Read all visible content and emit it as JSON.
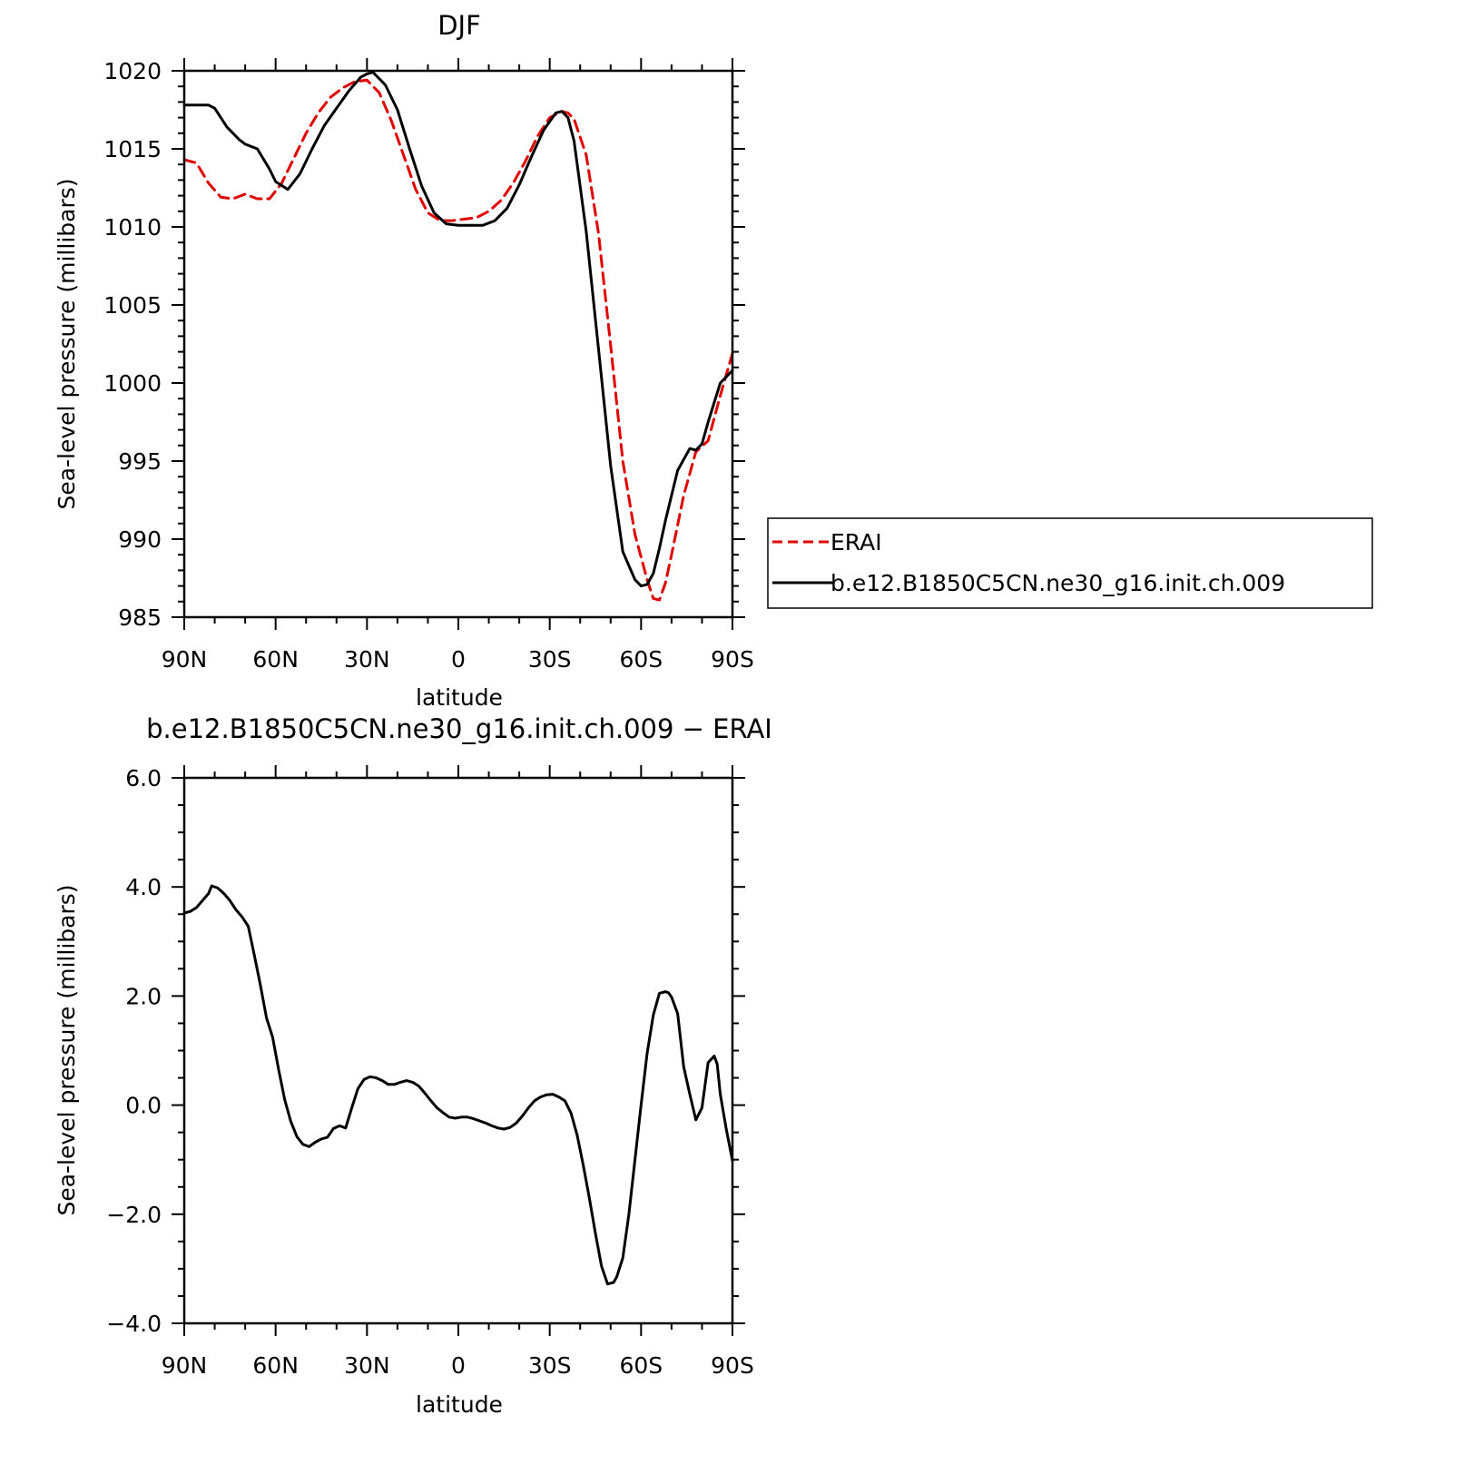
{
  "chart_data": [
    {
      "type": "line",
      "title": "DJF",
      "xlabel": "latitude",
      "ylabel": "Sea-level pressure (millibars)",
      "xlim": [
        90,
        -90
      ],
      "ylim": [
        985,
        1020
      ],
      "x_ticks": [
        90,
        60,
        30,
        0,
        -30,
        -60,
        -90
      ],
      "x_tick_labels": [
        "90N",
        "60N",
        "30N",
        "0",
        "30S",
        "60S",
        "90S"
      ],
      "y_ticks": [
        985,
        990,
        995,
        1000,
        1005,
        1010,
        1015,
        1020
      ],
      "y_tick_labels": [
        "985",
        "990",
        "995",
        "1000",
        "1005",
        "1010",
        "1015",
        "1020"
      ],
      "grid": false,
      "legend_position": "right, outside plot",
      "series": [
        {
          "name": "ERAI",
          "color": "#e00000",
          "dash": "dashed",
          "x": [
            90,
            86,
            82,
            78,
            74,
            70,
            66,
            62,
            58,
            54,
            50,
            46,
            42,
            38,
            34,
            30,
            26,
            22,
            18,
            14,
            10,
            6,
            2,
            -2,
            -6,
            -10,
            -14,
            -18,
            -22,
            -26,
            -30,
            -34,
            -36,
            -38,
            -42,
            -46,
            -50,
            -54,
            -58,
            -62,
            -64,
            -66,
            -68,
            -70,
            -74,
            -78,
            -82,
            -86,
            -90
          ],
          "y": [
            1014.3,
            1014.1,
            1012.8,
            1011.9,
            1011.8,
            1012.1,
            1011.8,
            1011.8,
            1012.8,
            1014.4,
            1016.0,
            1017.3,
            1018.3,
            1018.9,
            1019.3,
            1019.4,
            1018.6,
            1016.8,
            1014.6,
            1012.4,
            1010.9,
            1010.4,
            1010.4,
            1010.5,
            1010.6,
            1011.0,
            1011.7,
            1012.8,
            1014.2,
            1015.8,
            1017.0,
            1017.4,
            1017.3,
            1016.9,
            1014.6,
            1009.6,
            1002.4,
            995.0,
            990.3,
            987.4,
            986.2,
            986.1,
            987.2,
            989.0,
            992.8,
            995.6,
            996.3,
            999.2,
            1001.9
          ]
        },
        {
          "name": "b.e12.B1850C5CN.ne30_g16.init.ch.009",
          "color": "#000000",
          "dash": "solid",
          "x": [
            90,
            86,
            82,
            80,
            76,
            72,
            70,
            66,
            62,
            60,
            56,
            52,
            48,
            44,
            40,
            36,
            32,
            30,
            28,
            24,
            20,
            16,
            12,
            8,
            4,
            0,
            -4,
            -8,
            -12,
            -16,
            -20,
            -24,
            -28,
            -32,
            -34,
            -36,
            -38,
            -42,
            -46,
            -50,
            -54,
            -58,
            -60,
            -62,
            -64,
            -66,
            -68,
            -72,
            -76,
            -78,
            -80,
            -82,
            -86,
            -90
          ],
          "y": [
            1017.8,
            1017.8,
            1017.8,
            1017.6,
            1016.4,
            1015.6,
            1015.3,
            1015.0,
            1013.7,
            1012.9,
            1012.4,
            1013.4,
            1015.0,
            1016.5,
            1017.6,
            1018.7,
            1019.6,
            1019.8,
            1019.9,
            1019.1,
            1017.5,
            1015.0,
            1012.6,
            1010.9,
            1010.2,
            1010.1,
            1010.1,
            1010.1,
            1010.4,
            1011.2,
            1012.7,
            1014.5,
            1016.2,
            1017.3,
            1017.4,
            1017.0,
            1015.5,
            1009.7,
            1002.2,
            994.7,
            989.2,
            987.4,
            987.0,
            987.1,
            987.8,
            989.4,
            991.2,
            994.4,
            995.8,
            995.7,
            996.1,
            997.5,
            1000.0,
            1000.8
          ]
        }
      ]
    },
    {
      "type": "line",
      "title": "b.e12.B1850C5CN.ne30_g16.init.ch.009 − ERAI",
      "xlabel": "latitude",
      "ylabel": "Sea-level pressure (millibars)",
      "xlim": [
        90,
        -90
      ],
      "ylim": [
        -4.0,
        6.0
      ],
      "x_ticks": [
        90,
        60,
        30,
        0,
        -30,
        -60,
        -90
      ],
      "x_tick_labels": [
        "90N",
        "60N",
        "30N",
        "0",
        "30S",
        "60S",
        "90S"
      ],
      "y_ticks": [
        -4.0,
        -2.0,
        0.0,
        2.0,
        4.0,
        6.0
      ],
      "y_tick_labels": [
        "−4.0",
        "−2.0",
        "0.0",
        "2.0",
        "4.0",
        "6.0"
      ],
      "grid": false,
      "series": [
        {
          "color": "#000000",
          "dash": "solid",
          "x": [
            90,
            88,
            86,
            84,
            82,
            81,
            79,
            77,
            75,
            73,
            71,
            69,
            67,
            65,
            63,
            61,
            59,
            57,
            55,
            53,
            51,
            49,
            47,
            45,
            43,
            41,
            39,
            37,
            35,
            33,
            31,
            29,
            27,
            25,
            23,
            21,
            19,
            17,
            15,
            13,
            11,
            9,
            7,
            5,
            3,
            1,
            -1,
            -3,
            -5,
            -7,
            -9,
            -11,
            -13,
            -15,
            -17,
            -19,
            -21,
            -23,
            -25,
            -27,
            -29,
            -31,
            -33,
            -35,
            -37,
            -39,
            -41,
            -43,
            -45,
            -47,
            -49,
            -51,
            -52,
            -54,
            -56,
            -58,
            -60,
            -62,
            -64,
            -66,
            -68,
            -69,
            -70,
            -72,
            -74,
            -76,
            -78,
            -80,
            -82,
            -84,
            -85,
            -86,
            -88,
            -90
          ],
          "y": [
            3.52,
            3.55,
            3.62,
            3.75,
            3.88,
            4.02,
            3.98,
            3.88,
            3.75,
            3.58,
            3.45,
            3.28,
            2.75,
            2.2,
            1.6,
            1.25,
            0.65,
            0.1,
            -0.3,
            -0.58,
            -0.72,
            -0.76,
            -0.68,
            -0.62,
            -0.59,
            -0.43,
            -0.38,
            -0.42,
            -0.05,
            0.3,
            0.47,
            0.52,
            0.5,
            0.45,
            0.38,
            0.38,
            0.42,
            0.45,
            0.42,
            0.35,
            0.22,
            0.08,
            -0.05,
            -0.14,
            -0.22,
            -0.24,
            -0.22,
            -0.22,
            -0.25,
            -0.29,
            -0.33,
            -0.38,
            -0.42,
            -0.44,
            -0.41,
            -0.33,
            -0.2,
            -0.05,
            0.08,
            0.15,
            0.19,
            0.2,
            0.15,
            0.08,
            -0.15,
            -0.55,
            -1.1,
            -1.7,
            -2.35,
            -2.95,
            -3.28,
            -3.25,
            -3.15,
            -2.8,
            -2.0,
            -1.0,
            0.0,
            0.95,
            1.65,
            2.05,
            2.08,
            2.06,
            1.98,
            1.68,
            0.7,
            0.2,
            -0.27,
            -0.05,
            0.78,
            0.9,
            0.75,
            0.2,
            -0.45,
            -1.02
          ]
        }
      ]
    }
  ]
}
